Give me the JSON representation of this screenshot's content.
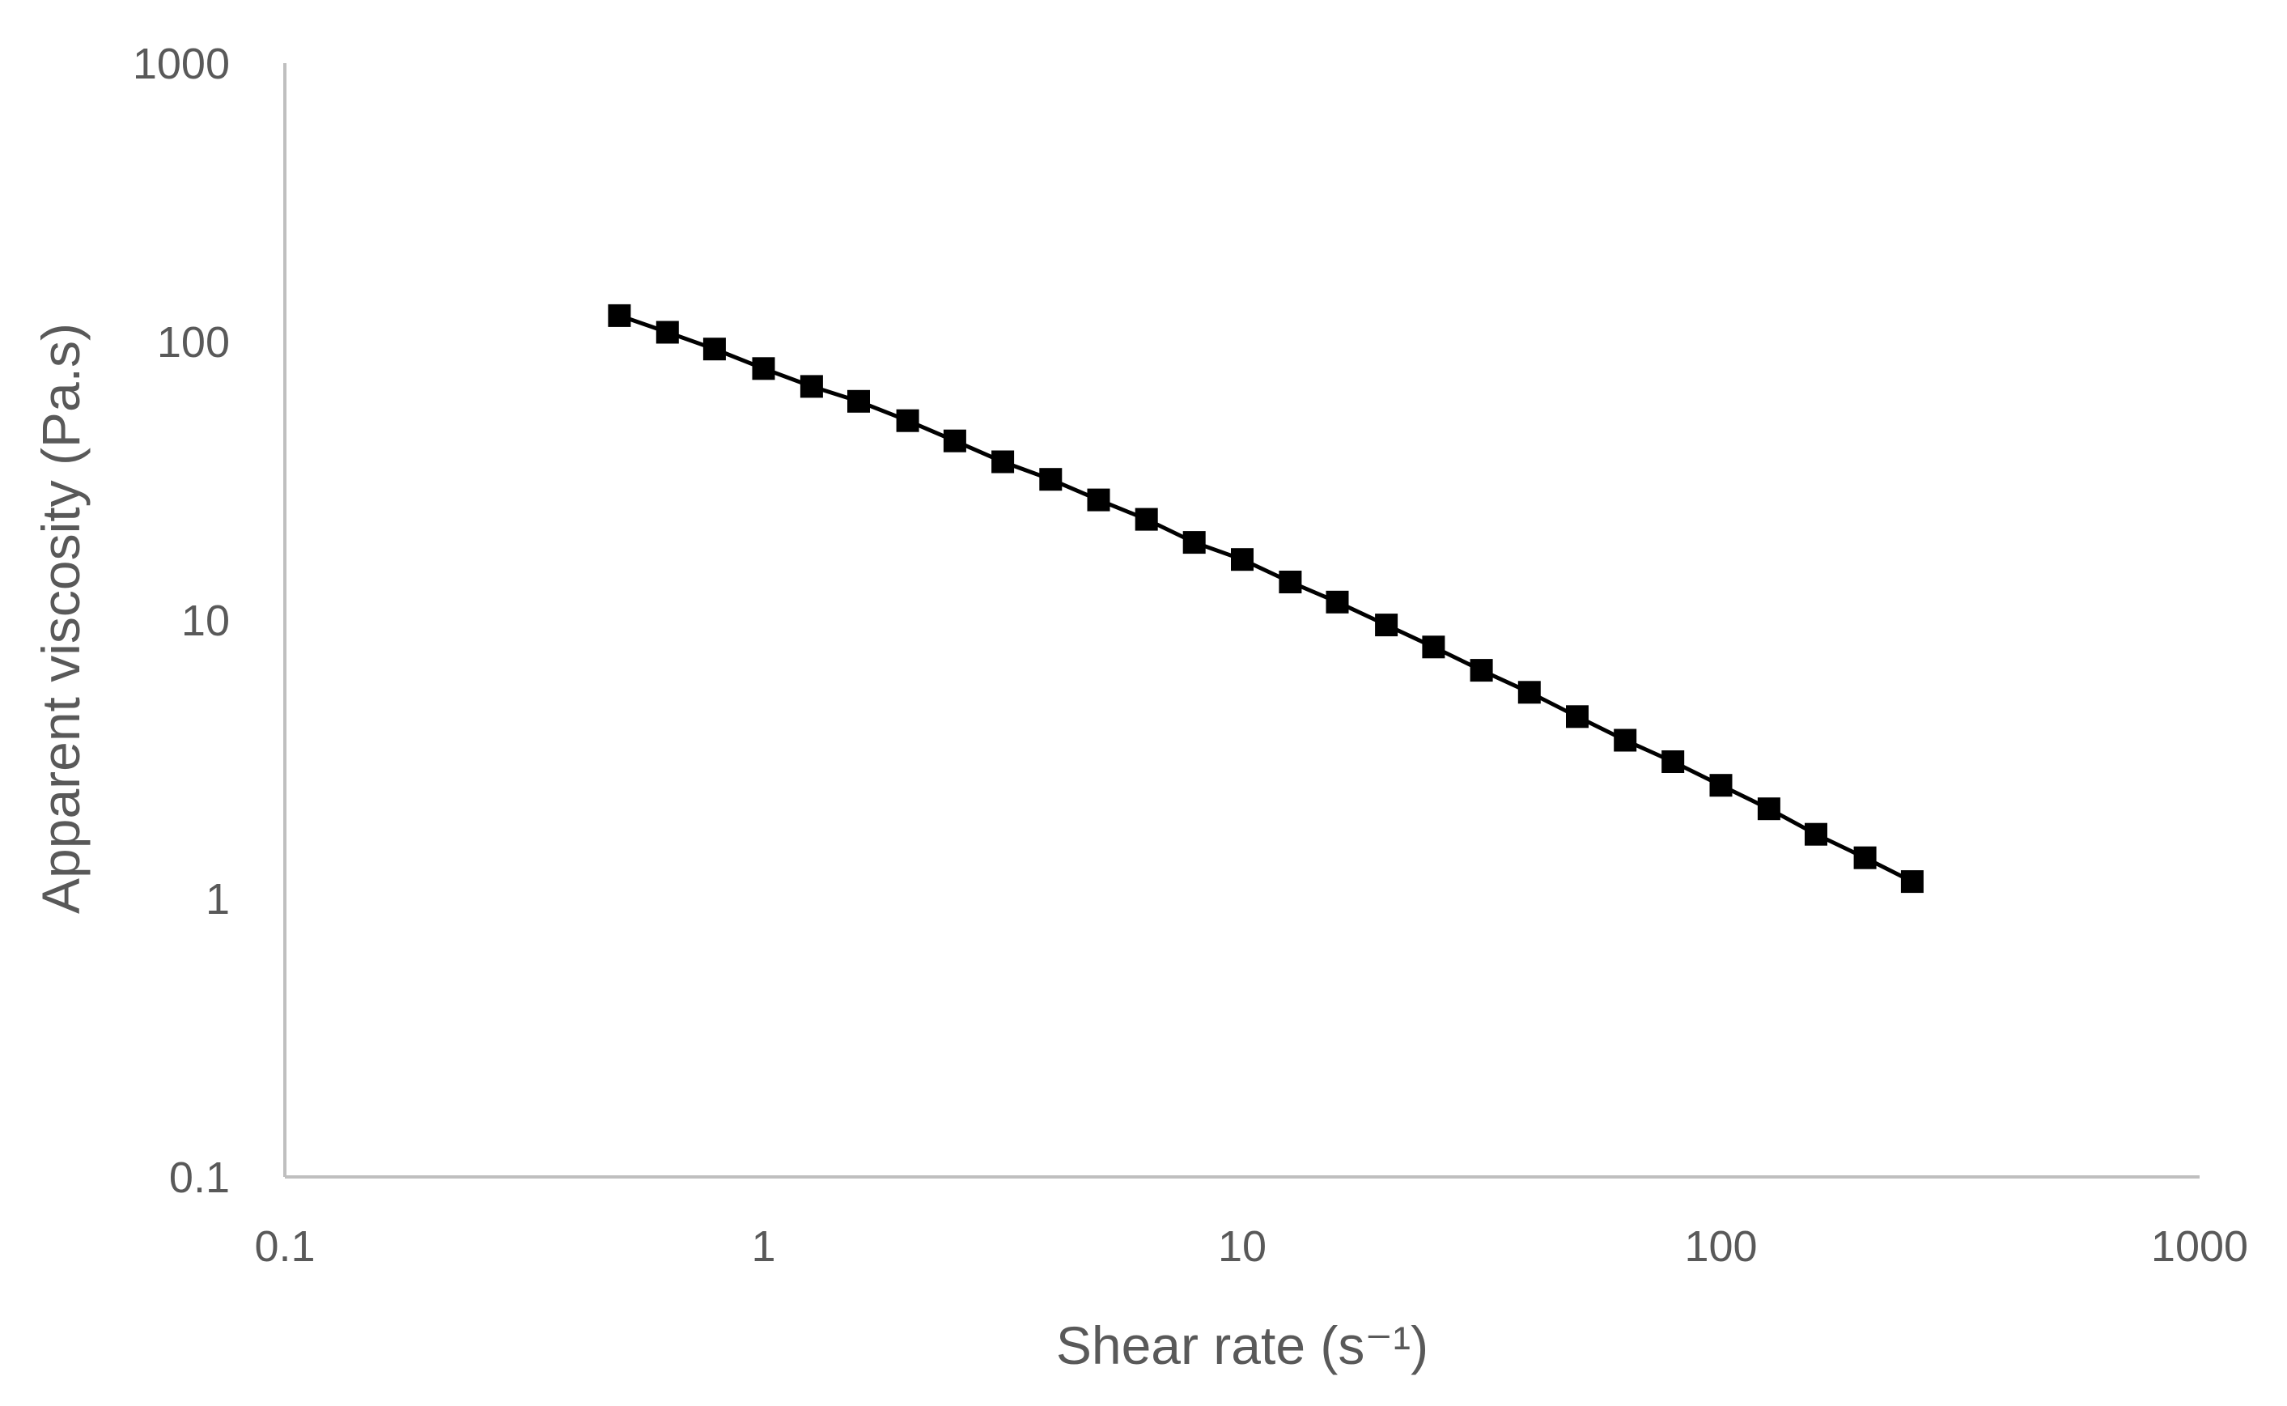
{
  "chart_data": {
    "type": "scatter",
    "title": "",
    "xlabel": "Shear rate (s⁻¹)",
    "ylabel": "Apparent viscosity (Pa.s)",
    "x_scale": "log",
    "y_scale": "log",
    "xlim": [
      0.1,
      1000
    ],
    "ylim": [
      0.1,
      1000
    ],
    "x_ticks": [
      "0.1",
      "1",
      "10",
      "100",
      "1000"
    ],
    "y_ticks": [
      "0.1",
      "1",
      "10",
      "100",
      "1000"
    ],
    "grid": false,
    "legend": "none",
    "series": [
      {
        "color": "#000000",
        "marker": "square",
        "line": true,
        "x": [
          0.5,
          0.63,
          0.79,
          1.0,
          1.26,
          1.58,
          2.0,
          2.51,
          3.16,
          3.98,
          5.01,
          6.31,
          7.94,
          10.0,
          12.6,
          15.8,
          20.0,
          25.1,
          31.6,
          39.8,
          50.1,
          63.1,
          79.4,
          100,
          126,
          158,
          200,
          251
        ],
        "y": [
          124,
          108,
          94,
          80,
          69,
          61,
          52,
          44,
          37,
          32,
          27,
          23,
          19,
          16.5,
          13.7,
          11.6,
          9.6,
          8.0,
          6.6,
          5.5,
          4.5,
          3.7,
          3.1,
          2.55,
          2.1,
          1.7,
          1.4,
          1.15
        ]
      }
    ]
  }
}
